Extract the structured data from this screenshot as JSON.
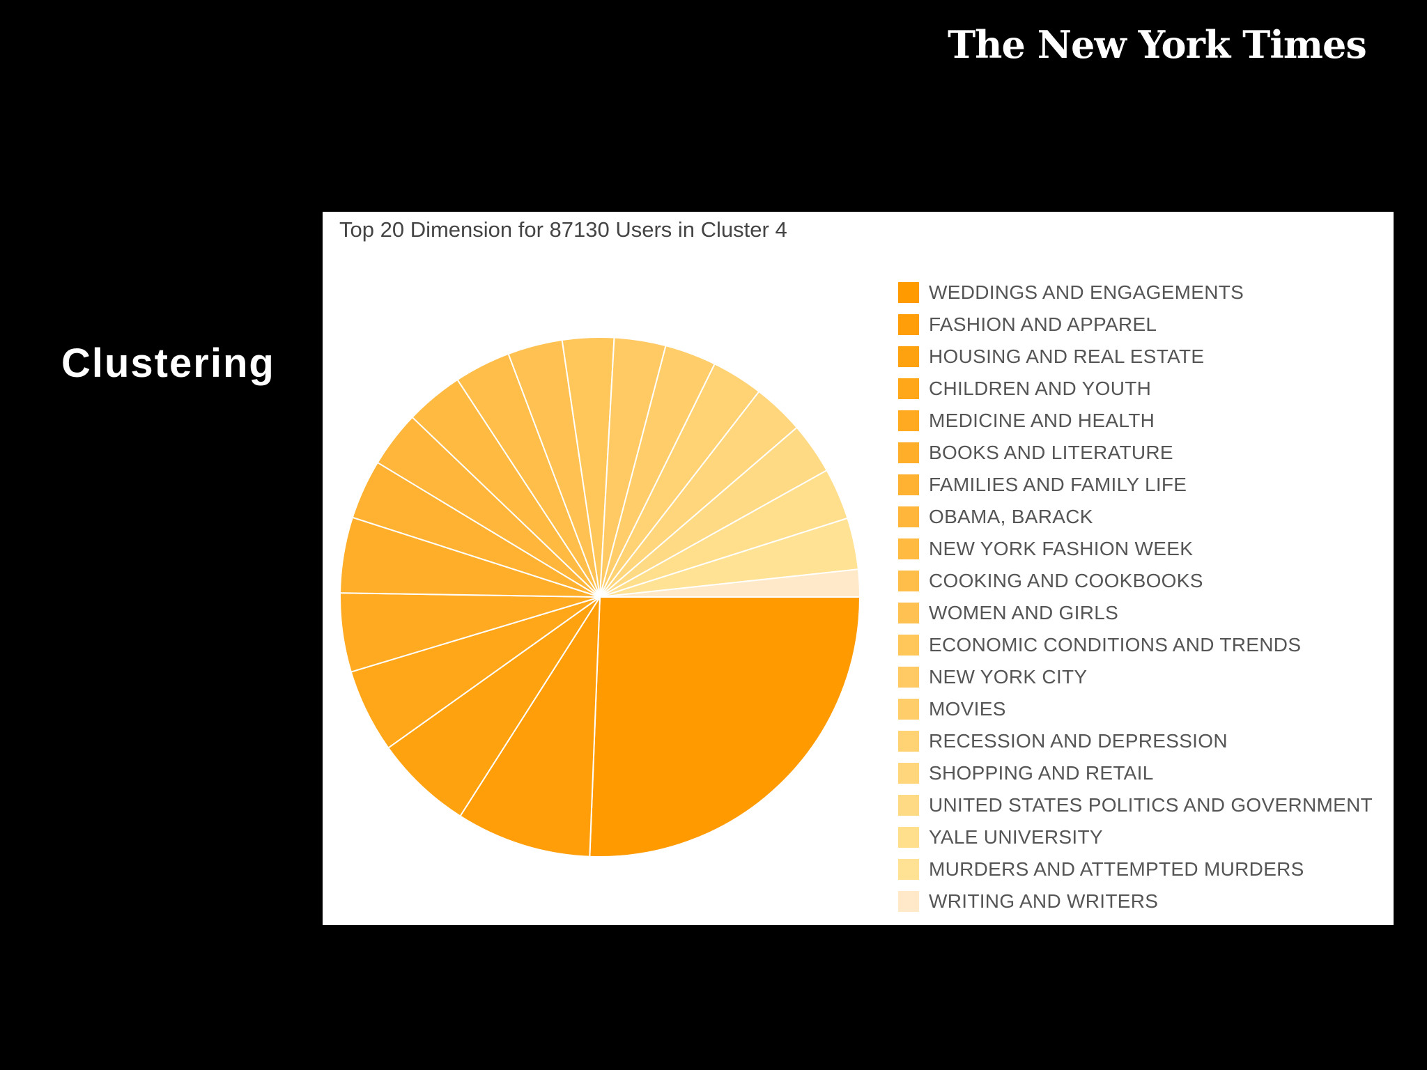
{
  "logo": {
    "text": "The New York Times"
  },
  "slide": {
    "title": "Clustering"
  },
  "colors": {
    "background": "#000000",
    "panel": "#ffffff",
    "slice_border": "#ffffff",
    "palette_start": "#ff9a00",
    "palette_end": "#ffe9c9"
  },
  "chart_data": {
    "type": "pie",
    "title": "Top 20 Dimension for 87130 Users in Cluster 4",
    "legend_position": "right",
    "slices": [
      {
        "label": "WEDDINGS AND ENGAGEMENTS",
        "value": 25.6,
        "color": "#ff9a00"
      },
      {
        "label": "FASHION AND APPAREL",
        "value": 8.4,
        "color": "#ff9e08"
      },
      {
        "label": "HOUSING AND REAL ESTATE",
        "value": 6.1,
        "color": "#ffa210"
      },
      {
        "label": "CHILDREN AND YOUTH",
        "value": 5.2,
        "color": "#ffa619"
      },
      {
        "label": "MEDICINE AND HEALTH",
        "value": 4.9,
        "color": "#ffaa21"
      },
      {
        "label": "BOOKS AND LITERATURE",
        "value": 4.7,
        "color": "#ffae29"
      },
      {
        "label": "FAMILIES AND FAMILY LIFE",
        "value": 3.7,
        "color": "#ffb231"
      },
      {
        "label": "OBAMA, BARACK",
        "value": 3.5,
        "color": "#ffb63a"
      },
      {
        "label": "NEW YORK FASHION WEEK",
        "value": 3.6,
        "color": "#ffba42"
      },
      {
        "label": "COOKING AND COOKBOOKS",
        "value": 3.5,
        "color": "#ffbe4a"
      },
      {
        "label": "WOMEN AND GIRLS",
        "value": 3.4,
        "color": "#ffc252"
      },
      {
        "label": "ECONOMIC CONDITIONS AND TRENDS",
        "value": 3.2,
        "color": "#ffc65a"
      },
      {
        "label": "NEW YORK CITY",
        "value": 3.2,
        "color": "#ffca63"
      },
      {
        "label": "MOVIES",
        "value": 3.2,
        "color": "#ffce6b"
      },
      {
        "label": "RECESSION AND DEPRESSION",
        "value": 3.2,
        "color": "#ffd273"
      },
      {
        "label": "SHOPPING AND RETAIL",
        "value": 3.2,
        "color": "#ffd67b"
      },
      {
        "label": "UNITED STATES POLITICS AND GOVERNMENT",
        "value": 3.2,
        "color": "#ffda84"
      },
      {
        "label": "YALE UNIVERSITY",
        "value": 3.2,
        "color": "#ffde8c"
      },
      {
        "label": "MURDERS AND ATTEMPTED MURDERS",
        "value": 3.2,
        "color": "#ffe294"
      },
      {
        "label": "WRITING AND WRITERS",
        "value": 1.7,
        "color": "#ffe9c9"
      }
    ]
  }
}
